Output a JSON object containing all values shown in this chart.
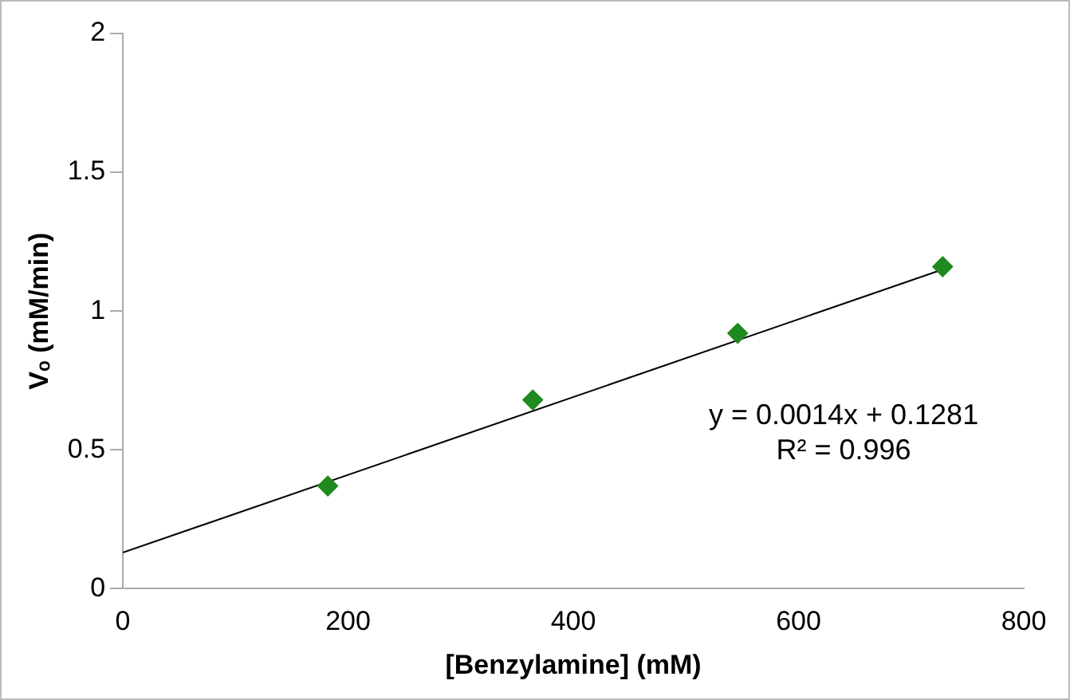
{
  "chart_data": {
    "type": "scatter",
    "xlabel": "[Benzylamine] (mM)",
    "ylabel": "Vₒ (mM/min)",
    "xlim": [
      0,
      800
    ],
    "xticks": [
      0,
      200,
      400,
      600,
      800
    ],
    "ylim": [
      0,
      2
    ],
    "yticks": [
      0,
      0.5,
      1,
      1.5,
      2
    ],
    "grid": false,
    "legend": false,
    "marker": "diamond",
    "series": [
      {
        "type": "scatter",
        "color": "#1f8a1f",
        "x": [
          182,
          364,
          546,
          728
        ],
        "values": [
          0.37,
          0.68,
          0.92,
          1.16
        ]
      },
      {
        "type": "line",
        "color": "#000000",
        "x": [
          0,
          728
        ],
        "values": [
          0.13,
          1.15
        ],
        "marker": "none"
      }
    ],
    "annotations": [
      "y = 0.0014x + 0.1281",
      "R² = 0.996"
    ]
  }
}
